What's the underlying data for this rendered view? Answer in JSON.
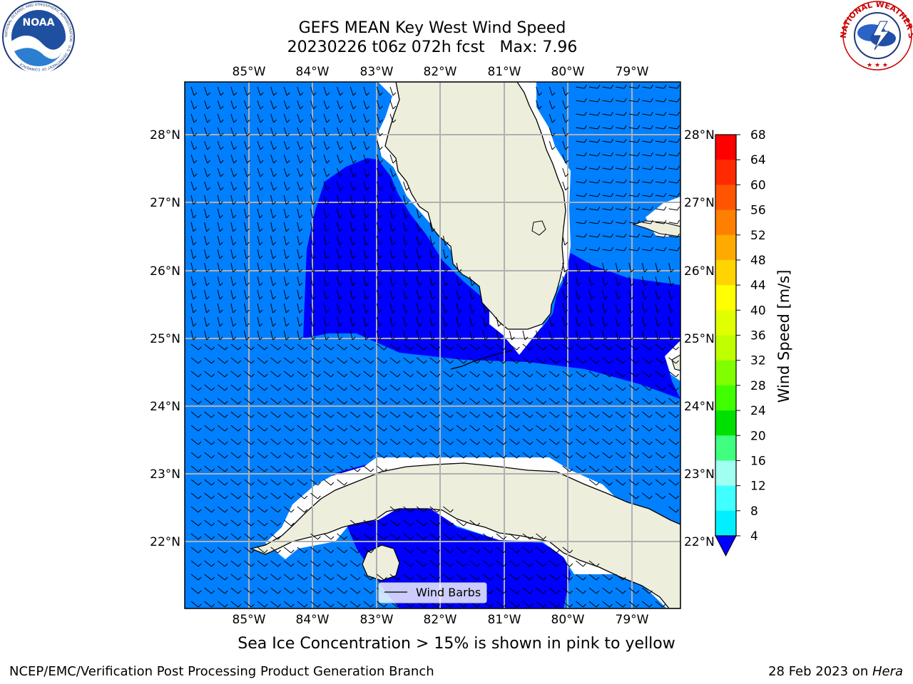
{
  "title_line1": "GEFS MEAN Key West Wind Speed",
  "title_line2": "20230226 t06z 072h fcst   Max: 7.96",
  "subcaption": "Sea Ice Concentration > 15% is shown in pink to yellow",
  "footer_left": "NCEP/EMC/Verification Post Processing Product Generation Branch",
  "footer_date": "28 Feb 2023 on ",
  "footer_host": "Hera",
  "logos": {
    "noaa_text": "NOAA",
    "noaa_ring": "NATIONAL OCEANIC AND ATMOSPHERIC ADMINISTRATION · U.S. DEPARTMENT OF COMMERCE ·",
    "nws_ring": "NATIONAL WEATHER SERVICE"
  },
  "map": {
    "lon_labels": [
      "85°W",
      "84°W",
      "83°W",
      "82°W",
      "81°W",
      "80°W",
      "79°W"
    ],
    "lat_labels": [
      "28°N",
      "27°N",
      "26°N",
      "25°N",
      "24°N",
      "23°N",
      "22°N"
    ],
    "legend_label": "Wind Barbs",
    "colors": {
      "land": "#eeeedd",
      "speed_4_8": "#0080ff",
      "speed_below_4": "#0000ff",
      "grid": "#b0b0b0"
    }
  },
  "colorbar": {
    "title": "Wind Speed [m/s]",
    "ticks": [
      "68",
      "64",
      "60",
      "56",
      "52",
      "48",
      "44",
      "40",
      "36",
      "32",
      "28",
      "24",
      "20",
      "16",
      "12",
      "8",
      "4"
    ],
    "colors": [
      "#ff0000",
      "#ff2a00",
      "#ff5500",
      "#ff8000",
      "#ffaa00",
      "#ffd400",
      "#ffff00",
      "#e0ff00",
      "#c0ff00",
      "#80ff00",
      "#40ff00",
      "#00e000",
      "#40ff80",
      "#a0fff0",
      "#40ffff",
      "#00f0ff",
      "#0080ff"
    ],
    "under_color": "#0000ff"
  }
}
